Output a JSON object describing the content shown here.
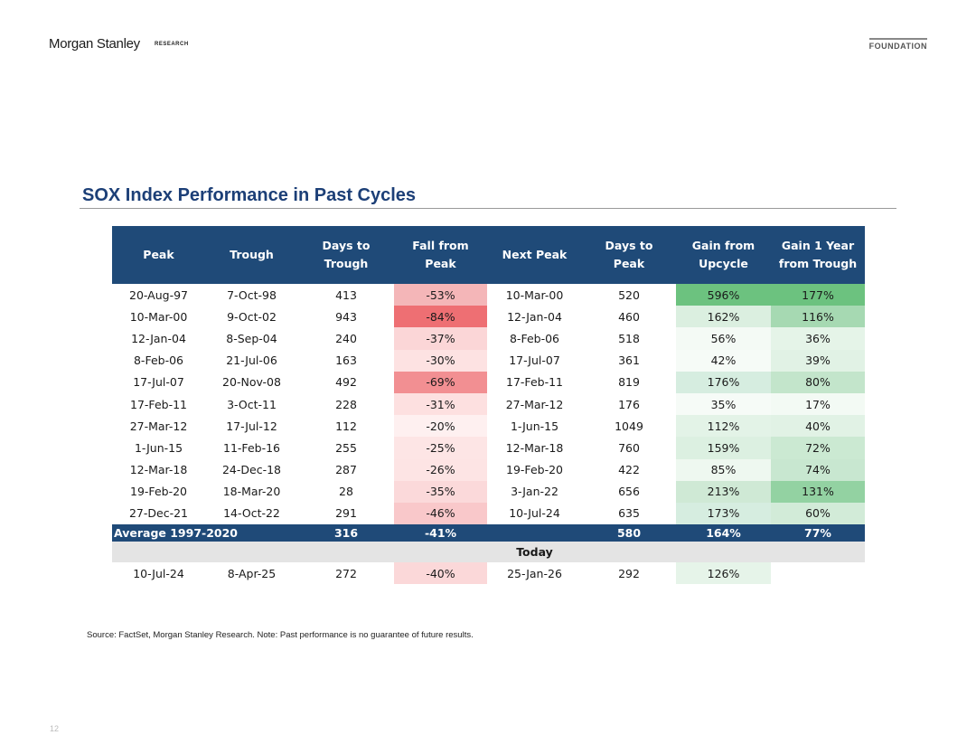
{
  "header": {
    "logo": "Morgan Stanley",
    "logo_sub": "RESEARCH",
    "foundation": "FOUNDATION"
  },
  "title": "SOX Index Performance in Past Cycles",
  "table": {
    "headers": [
      "Peak",
      "Trough",
      "Days to\nTrough",
      "Fall from\nPeak",
      "Next Peak",
      "Days to\nPeak",
      "Gain from\nUpcycle",
      "Gain 1 Year\nfrom Trough"
    ],
    "rows": [
      [
        "20-Aug-97",
        "7-Oct-98",
        "413",
        "-53%",
        "10-Mar-00",
        "520",
        "596%",
        "177%"
      ],
      [
        "10-Mar-00",
        "9-Oct-02",
        "943",
        "-84%",
        "12-Jan-04",
        "460",
        "162%",
        "116%"
      ],
      [
        "12-Jan-04",
        "8-Sep-04",
        "240",
        "-37%",
        "8-Feb-06",
        "518",
        "56%",
        "36%"
      ],
      [
        "8-Feb-06",
        "21-Jul-06",
        "163",
        "-30%",
        "17-Jul-07",
        "361",
        "42%",
        "39%"
      ],
      [
        "17-Jul-07",
        "20-Nov-08",
        "492",
        "-69%",
        "17-Feb-11",
        "819",
        "176%",
        "80%"
      ],
      [
        "17-Feb-11",
        "3-Oct-11",
        "228",
        "-31%",
        "27-Mar-12",
        "176",
        "35%",
        "17%"
      ],
      [
        "27-Mar-12",
        "17-Jul-12",
        "112",
        "-20%",
        "1-Jun-15",
        "1049",
        "112%",
        "40%"
      ],
      [
        "1-Jun-15",
        "11-Feb-16",
        "255",
        "-25%",
        "12-Mar-18",
        "760",
        "159%",
        "72%"
      ],
      [
        "12-Mar-18",
        "24-Dec-18",
        "287",
        "-26%",
        "19-Feb-20",
        "422",
        "85%",
        "74%"
      ],
      [
        "19-Feb-20",
        "18-Mar-20",
        "28",
        "-35%",
        "3-Jan-22",
        "656",
        "213%",
        "131%"
      ],
      [
        "27-Dec-21",
        "14-Oct-22",
        "291",
        "-46%",
        "10-Jul-24",
        "635",
        "173%",
        "60%"
      ]
    ],
    "average": {
      "label": "Average 1997-2020",
      "days_to_trough": "316",
      "fall_from_peak": "-41%",
      "days_to_peak": "580",
      "gain_from_upcycle": "164%",
      "gain_1yr": "77%"
    },
    "today_label": "Today",
    "today_row": [
      "10-Jul-24",
      "8-Apr-25",
      "272",
      "-40%",
      "25-Jan-26",
      "292",
      "126%",
      ""
    ]
  },
  "colors": {
    "header_bg": "#1f4a78",
    "title": "#1c3f77",
    "fall": [
      "#f4b6b8",
      "#ee6f73",
      "#fbd6d7",
      "#fde2e2",
      "#f28f92",
      "#fde0e0",
      "#fef0f0",
      "#fde5e5",
      "#fde4e4",
      "#fbd9da",
      "#f9c8ca"
    ],
    "gain_upcycle": [
      "#6cc27f",
      "#dbefe0",
      "#f4faf5",
      "#f6fbf7",
      "#d6ede0",
      "#f6fbf7",
      "#e3f3e7",
      "#dcf0e1",
      "#eef8f0",
      "#cfe9d5",
      "#d6ede0"
    ],
    "gain_1yr": [
      "#6cc27f",
      "#a6d9b2",
      "#e5f4e8",
      "#e1f2e5",
      "#c3e5cb",
      "#f3faf4",
      "#e1f2e5",
      "#cbe9d2",
      "#c8e7d0",
      "#93d2a2",
      "#d2ebd8"
    ],
    "today_fall": "#fbd8d9",
    "today_gain": "#e6f4e9"
  },
  "footer": {
    "source": "Source: FactSet, Morgan Stanley Research. Note: Past performance is no guarantee of future results.",
    "page_number": "12"
  }
}
